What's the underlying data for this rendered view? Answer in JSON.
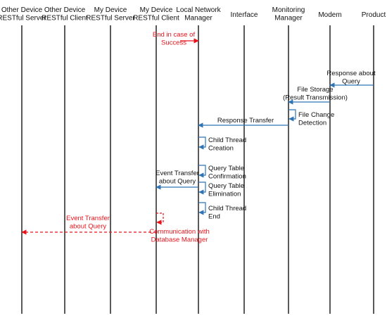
{
  "colors": {
    "lifeline": "#000000",
    "message": "#2f74b5",
    "highlight": "#e8141c",
    "text": "#111111"
  },
  "participants": [
    {
      "id": "other_server",
      "label_lines": [
        "Other Device",
        "RESTful Server"
      ]
    },
    {
      "id": "other_client",
      "label_lines": [
        "Other Device",
        "RESTful Client"
      ]
    },
    {
      "id": "my_server",
      "label_lines": [
        "My Device",
        "RESTful Server"
      ]
    },
    {
      "id": "my_client",
      "label_lines": [
        "My Device",
        "RESTful Client"
      ]
    },
    {
      "id": "local_nm",
      "label_lines": [
        "Local  Network",
        "Manager"
      ]
    },
    {
      "id": "interface",
      "label_lines": [
        "Interface"
      ]
    },
    {
      "id": "monitoring",
      "label_lines": [
        "Monitoring",
        "Manager"
      ]
    },
    {
      "id": "modem",
      "label_lines": [
        "Modem"
      ]
    },
    {
      "id": "product",
      "label_lines": [
        "Product"
      ]
    }
  ],
  "messages": [
    {
      "id": "end_success",
      "from": "my_client",
      "to": "local_nm",
      "label_lines": [
        "End in case of",
        "Success"
      ],
      "style": "highlight"
    },
    {
      "id": "response_query",
      "from": "product",
      "to": "modem",
      "label_lines": [
        "Response about",
        "Query"
      ],
      "style": "normal"
    },
    {
      "id": "file_storage",
      "from": "modem",
      "to": "monitoring",
      "label_lines": [
        "File Storage",
        "(Result Transmission)"
      ],
      "style": "normal"
    },
    {
      "id": "file_change",
      "from": "monitoring",
      "to": "monitoring",
      "label_lines": [
        "File Change",
        "Detection"
      ],
      "style": "normal"
    },
    {
      "id": "response_transfer",
      "from": "monitoring",
      "to": "local_nm",
      "label_lines": [
        "Response Transfer"
      ],
      "style": "normal"
    },
    {
      "id": "child_creation",
      "from": "local_nm",
      "to": "local_nm",
      "label_lines": [
        "Child Thread",
        "Creation"
      ],
      "style": "normal"
    },
    {
      "id": "query_confirm",
      "from": "local_nm",
      "to": "local_nm",
      "label_lines": [
        "Query Table",
        "Confirmation"
      ],
      "style": "normal"
    },
    {
      "id": "event_transfer",
      "from": "local_nm",
      "to": "my_client",
      "label_lines": [
        "Event Transfer",
        "about Query"
      ],
      "style": "normal"
    },
    {
      "id": "query_elim",
      "from": "local_nm",
      "to": "local_nm",
      "label_lines": [
        "Query Table",
        "Elimination"
      ],
      "style": "normal"
    },
    {
      "id": "child_end",
      "from": "local_nm",
      "to": "local_nm",
      "label_lines": [
        "Child Thread",
        "End"
      ],
      "style": "normal"
    },
    {
      "id": "db_comm",
      "from": "my_client",
      "to": "my_client",
      "label_lines": [
        "Communication with",
        "Database Manager"
      ],
      "style": "highlight-dashed"
    },
    {
      "id": "event_transfer_other",
      "from": "local_nm",
      "to": "other_server",
      "label_lines": [
        "Event Transfer",
        "about Query"
      ],
      "style": "highlight-dashed"
    }
  ]
}
